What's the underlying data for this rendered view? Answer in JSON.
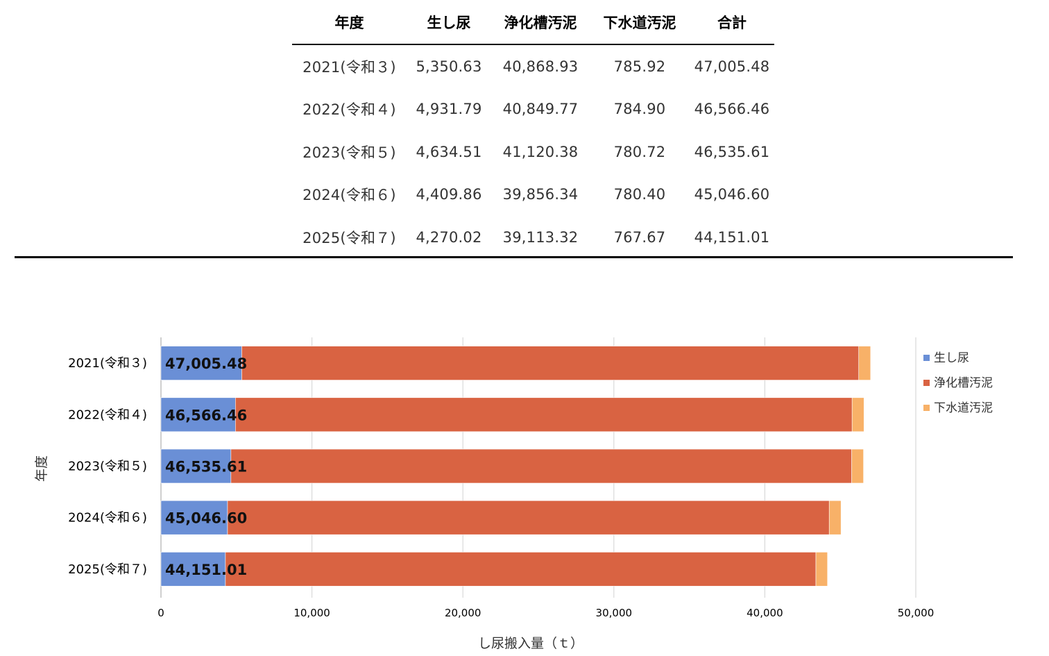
{
  "table": {
    "headers": [
      "年度",
      "生し尿",
      "浄化槽汚泥",
      "下水道汚泥",
      "合計"
    ],
    "rows": [
      [
        "2021(令和３)",
        "5,350.63",
        "40,868.93",
        "785.92",
        "47,005.48"
      ],
      [
        "2022(令和４)",
        "4,931.79",
        "40,849.77",
        "784.90",
        "46,566.46"
      ],
      [
        "2023(令和５)",
        "4,634.51",
        "41,120.38",
        "780.72",
        "46,535.61"
      ],
      [
        "2024(令和６)",
        "4,409.86",
        "39,856.34",
        "780.40",
        "45,046.60"
      ],
      [
        "2025(令和７)",
        "4,270.02",
        "39,113.32",
        "767.67",
        "44,151.01"
      ]
    ]
  },
  "chart_data": {
    "type": "bar",
    "orientation": "horizontal",
    "stacked": true,
    "categories": [
      "2021(令和３)",
      "2022(令和４)",
      "2023(令和５)",
      "2024(令和６)",
      "2025(令和７)"
    ],
    "series": [
      {
        "name": "生し尿",
        "values": [
          5350.63,
          4931.79,
          4634.51,
          4409.86,
          4270.02
        ],
        "color": "#6a8fd6"
      },
      {
        "name": "浄化槽汚泥",
        "values": [
          40868.93,
          40849.77,
          41120.38,
          39856.34,
          39113.32
        ],
        "color": "#d96342"
      },
      {
        "name": "下水道汚泥",
        "values": [
          785.92,
          784.9,
          780.72,
          780.4,
          767.67
        ],
        "color": "#f8b168"
      }
    ],
    "data_labels": [
      "47,005.48",
      "46,566.46",
      "46,535.61",
      "45,046.60",
      "44,151.01"
    ],
    "xlabel": "し尿搬入量（ｔ）",
    "ylabel": "年度",
    "xlim": [
      0,
      50000
    ],
    "xticks": [
      0,
      10000,
      20000,
      30000,
      40000,
      50000
    ],
    "xtick_labels": [
      "0",
      "10,000",
      "20,000",
      "30,000",
      "40,000",
      "50,000"
    ],
    "grid": true,
    "legend_position": "right"
  }
}
